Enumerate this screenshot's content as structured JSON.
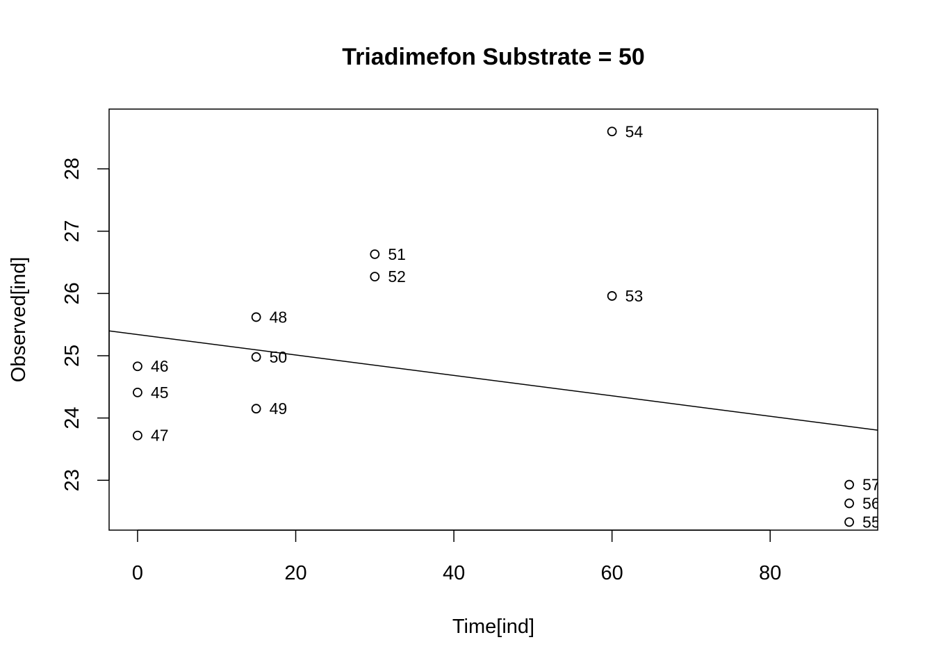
{
  "chart_data": {
    "type": "scatter",
    "title": "Triadimefon Substrate = 50",
    "xlabel": "Time[ind]",
    "ylabel": "Observed[ind]",
    "xlim": [
      -3.6,
      93.6
    ],
    "ylim": [
      22.2,
      28.96
    ],
    "xticks": [
      "0",
      "20",
      "40",
      "60",
      "80"
    ],
    "xtick_values": [
      0,
      20,
      40,
      60,
      80
    ],
    "yticks": [
      "23",
      "24",
      "25",
      "26",
      "27",
      "28"
    ],
    "ytick_values": [
      23,
      24,
      25,
      26,
      27,
      28
    ],
    "grid": false,
    "points": [
      {
        "label": "45",
        "x": 0,
        "y": 24.41
      },
      {
        "label": "46",
        "x": 0,
        "y": 24.83
      },
      {
        "label": "47",
        "x": 0,
        "y": 23.72
      },
      {
        "label": "48",
        "x": 15,
        "y": 25.62
      },
      {
        "label": "49",
        "x": 15,
        "y": 24.15
      },
      {
        "label": "50",
        "x": 15,
        "y": 24.98
      },
      {
        "label": "51",
        "x": 30,
        "y": 26.63
      },
      {
        "label": "52",
        "x": 30,
        "y": 26.27
      },
      {
        "label": "53",
        "x": 60,
        "y": 25.96
      },
      {
        "label": "54",
        "x": 60,
        "y": 28.6
      },
      {
        "label": "55",
        "x": 90,
        "y": 22.33
      },
      {
        "label": "56",
        "x": 90,
        "y": 22.63
      },
      {
        "label": "57",
        "x": 90,
        "y": 22.93
      }
    ],
    "fit_line": {
      "intercept": 25.34,
      "slope": -0.0164
    }
  }
}
